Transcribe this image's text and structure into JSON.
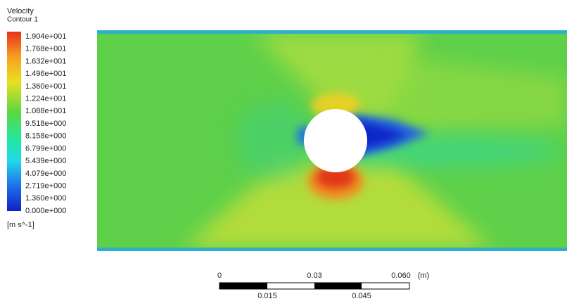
{
  "legend": {
    "title": "Velocity",
    "subtitle": "Contour 1",
    "levels": [
      "1.904e+001",
      "1.768e+001",
      "1.632e+001",
      "1.496e+001",
      "1.360e+001",
      "1.224e+001",
      "1.088e+001",
      "9.518e+000",
      "8.158e+000",
      "6.799e+000",
      "5.439e+000",
      "4.079e+000",
      "2.719e+000",
      "1.360e+000",
      "0.000e+000"
    ],
    "units": "[m s^-1]"
  },
  "scale_bar": {
    "top_labels": [
      "0",
      "0.03",
      "0.060"
    ],
    "unit": "(m)",
    "bottom_labels": [
      "0.015",
      "0.045"
    ]
  }
}
